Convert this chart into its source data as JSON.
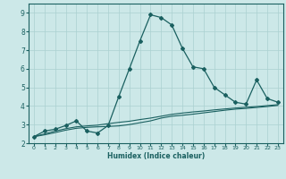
{
  "xlabel": "Humidex (Indice chaleur)",
  "ylabel": "",
  "background_color": "#cce8e8",
  "grid_color": "#aad0d0",
  "line_color": "#1a6060",
  "xlim": [
    -0.5,
    23.5
  ],
  "ylim": [
    2.0,
    9.5
  ],
  "xticks": [
    0,
    1,
    2,
    3,
    4,
    5,
    6,
    7,
    8,
    9,
    10,
    11,
    12,
    13,
    14,
    15,
    16,
    17,
    18,
    19,
    20,
    21,
    22,
    23
  ],
  "yticks": [
    2,
    3,
    4,
    5,
    6,
    7,
    8,
    9
  ],
  "series1_x": [
    0,
    1,
    2,
    3,
    4,
    5,
    6,
    7,
    8,
    9,
    10,
    11,
    12,
    13,
    14,
    15,
    16,
    17,
    18,
    19,
    20,
    21,
    22,
    23
  ],
  "series1_y": [
    2.35,
    2.65,
    2.75,
    2.95,
    3.2,
    2.65,
    2.55,
    2.95,
    4.5,
    6.0,
    7.5,
    8.9,
    8.75,
    8.35,
    7.1,
    6.1,
    6.0,
    5.0,
    4.6,
    4.2,
    4.1,
    5.4,
    4.4,
    4.2
  ],
  "series2_x": [
    0,
    1,
    2,
    3,
    4,
    5,
    6,
    7,
    8,
    9,
    10,
    11,
    12,
    13,
    14,
    15,
    16,
    17,
    18,
    19,
    20,
    21,
    22,
    23
  ],
  "series2_y": [
    2.35,
    2.5,
    2.65,
    2.78,
    2.88,
    2.93,
    2.97,
    3.05,
    3.12,
    3.18,
    3.27,
    3.35,
    3.45,
    3.55,
    3.62,
    3.68,
    3.73,
    3.79,
    3.84,
    3.89,
    3.93,
    3.97,
    4.02,
    4.07
  ],
  "series3_x": [
    0,
    1,
    2,
    3,
    4,
    5,
    6,
    7,
    8,
    9,
    10,
    11,
    12,
    13,
    14,
    15,
    16,
    17,
    18,
    19,
    20,
    21,
    22,
    23
  ],
  "series3_y": [
    2.35,
    2.45,
    2.57,
    2.7,
    2.8,
    2.85,
    2.88,
    2.9,
    2.93,
    3.0,
    3.1,
    3.2,
    3.35,
    3.45,
    3.5,
    3.56,
    3.63,
    3.7,
    3.77,
    3.83,
    3.87,
    3.92,
    3.97,
    4.03
  ]
}
